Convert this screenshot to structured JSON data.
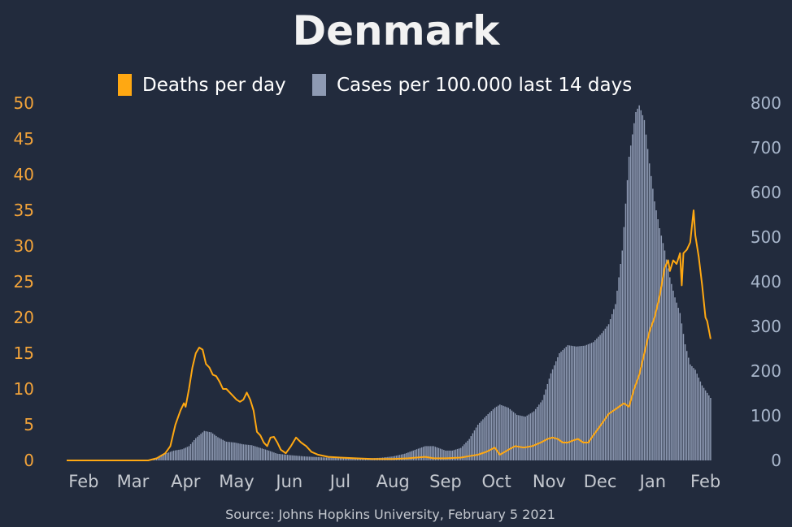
{
  "chart_data": {
    "type": "bar+line",
    "title": "Denmark",
    "source": "Source: Johns Hopkins University, February 5 2021",
    "legend_position": "top-center",
    "colors": {
      "background": "#222b3d",
      "deaths": "#ffa812",
      "cases": "#8e9ab3",
      "left_axis": "#f2a33a",
      "right_axis": "#a9b7cc"
    },
    "x_axis": {
      "start": "2020-01-22",
      "end": "2021-02-05",
      "tick_labels": [
        "Feb",
        "Mar",
        "Apr",
        "May",
        "Jun",
        "Jul",
        "Aug",
        "Sep",
        "Oct",
        "Nov",
        "Dec",
        "Jan",
        "Feb"
      ],
      "tick_dates": [
        "2020-02-01",
        "2020-03-01",
        "2020-04-01",
        "2020-05-01",
        "2020-06-01",
        "2020-07-01",
        "2020-08-01",
        "2020-09-01",
        "2020-10-01",
        "2020-11-01",
        "2020-12-01",
        "2021-01-01",
        "2021-02-01"
      ]
    },
    "y_left": {
      "range": [
        0,
        50
      ],
      "ticks": [
        0,
        5,
        10,
        15,
        20,
        25,
        30,
        35,
        40,
        45,
        50
      ]
    },
    "y_right": {
      "range": [
        0,
        800
      ],
      "ticks": [
        0,
        100,
        200,
        300,
        400,
        500,
        600,
        700,
        800
      ]
    },
    "series": [
      {
        "name": "Deaths per day",
        "axis": "left",
        "kind": "line",
        "points": [
          [
            "2020-01-22",
            0
          ],
          [
            "2020-03-10",
            0
          ],
          [
            "2020-03-15",
            0.3
          ],
          [
            "2020-03-20",
            1
          ],
          [
            "2020-03-23",
            2
          ],
          [
            "2020-03-26",
            5
          ],
          [
            "2020-03-29",
            7
          ],
          [
            "2020-03-31",
            8
          ],
          [
            "2020-04-01",
            7.5
          ],
          [
            "2020-04-03",
            10
          ],
          [
            "2020-04-05",
            13
          ],
          [
            "2020-04-07",
            15
          ],
          [
            "2020-04-09",
            15.8
          ],
          [
            "2020-04-11",
            15.5
          ],
          [
            "2020-04-13",
            13.5
          ],
          [
            "2020-04-15",
            13
          ],
          [
            "2020-04-17",
            12
          ],
          [
            "2020-04-19",
            11.8
          ],
          [
            "2020-04-21",
            11
          ],
          [
            "2020-04-23",
            10
          ],
          [
            "2020-04-25",
            10
          ],
          [
            "2020-04-27",
            9.5
          ],
          [
            "2020-04-29",
            9
          ],
          [
            "2020-05-01",
            8.5
          ],
          [
            "2020-05-03",
            8.2
          ],
          [
            "2020-05-05",
            8.5
          ],
          [
            "2020-05-07",
            9.5
          ],
          [
            "2020-05-09",
            8.5
          ],
          [
            "2020-05-11",
            7
          ],
          [
            "2020-05-13",
            4
          ],
          [
            "2020-05-15",
            3.5
          ],
          [
            "2020-05-17",
            2.5
          ],
          [
            "2020-05-19",
            2
          ],
          [
            "2020-05-21",
            3.2
          ],
          [
            "2020-05-23",
            3.3
          ],
          [
            "2020-05-25",
            2.5
          ],
          [
            "2020-05-27",
            1.5
          ],
          [
            "2020-05-30",
            1
          ],
          [
            "2020-06-02",
            2
          ],
          [
            "2020-06-05",
            3.2
          ],
          [
            "2020-06-08",
            2.5
          ],
          [
            "2020-06-11",
            2
          ],
          [
            "2020-06-14",
            1.2
          ],
          [
            "2020-06-18",
            0.8
          ],
          [
            "2020-06-24",
            0.5
          ],
          [
            "2020-07-01",
            0.4
          ],
          [
            "2020-07-10",
            0.3
          ],
          [
            "2020-07-20",
            0.2
          ],
          [
            "2020-08-01",
            0.2
          ],
          [
            "2020-08-10",
            0.3
          ],
          [
            "2020-08-20",
            0.5
          ],
          [
            "2020-08-25",
            0.3
          ],
          [
            "2020-09-01",
            0.3
          ],
          [
            "2020-09-10",
            0.4
          ],
          [
            "2020-09-15",
            0.6
          ],
          [
            "2020-09-20",
            0.8
          ],
          [
            "2020-09-25",
            1.2
          ],
          [
            "2020-09-30",
            1.8
          ],
          [
            "2020-10-03",
            0.8
          ],
          [
            "2020-10-08",
            1.5
          ],
          [
            "2020-10-12",
            2
          ],
          [
            "2020-10-17",
            1.8
          ],
          [
            "2020-10-22",
            2
          ],
          [
            "2020-10-27",
            2.5
          ],
          [
            "2020-10-31",
            3
          ],
          [
            "2020-11-03",
            3.2
          ],
          [
            "2020-11-06",
            3
          ],
          [
            "2020-11-09",
            2.5
          ],
          [
            "2020-11-12",
            2.5
          ],
          [
            "2020-11-15",
            2.8
          ],
          [
            "2020-11-18",
            3
          ],
          [
            "2020-11-21",
            2.5
          ],
          [
            "2020-11-24",
            2.5
          ],
          [
            "2020-11-27",
            3.5
          ],
          [
            "2020-11-30",
            4.5
          ],
          [
            "2020-12-03",
            5.5
          ],
          [
            "2020-12-06",
            6.5
          ],
          [
            "2020-12-09",
            7
          ],
          [
            "2020-12-12",
            7.5
          ],
          [
            "2020-12-15",
            8
          ],
          [
            "2020-12-18",
            7.5
          ],
          [
            "2020-12-21",
            10
          ],
          [
            "2020-12-24",
            12
          ],
          [
            "2020-12-27",
            15
          ],
          [
            "2020-12-30",
            18
          ],
          [
            "2021-01-02",
            20
          ],
          [
            "2021-01-05",
            23
          ],
          [
            "2021-01-08",
            27
          ],
          [
            "2021-01-10",
            28
          ],
          [
            "2021-01-11",
            26.5
          ],
          [
            "2021-01-13",
            28
          ],
          [
            "2021-01-15",
            27.5
          ],
          [
            "2021-01-17",
            29
          ],
          [
            "2021-01-18",
            24.5
          ],
          [
            "2021-01-19",
            29
          ],
          [
            "2021-01-21",
            29.5
          ],
          [
            "2021-01-23",
            30.5
          ],
          [
            "2021-01-25",
            35
          ],
          [
            "2021-01-26",
            31.5
          ],
          [
            "2021-01-28",
            28.5
          ],
          [
            "2021-01-30",
            24.5
          ],
          [
            "2021-02-01",
            20
          ],
          [
            "2021-02-02",
            19.5
          ],
          [
            "2021-02-04",
            17
          ]
        ]
      },
      {
        "name": "Cases per 100.000 last 14 days",
        "axis": "right",
        "kind": "bar",
        "points": [
          [
            "2020-01-22",
            0
          ],
          [
            "2020-03-10",
            0
          ],
          [
            "2020-03-15",
            5
          ],
          [
            "2020-03-20",
            15
          ],
          [
            "2020-03-25",
            22
          ],
          [
            "2020-03-30",
            25
          ],
          [
            "2020-04-03",
            32
          ],
          [
            "2020-04-07",
            50
          ],
          [
            "2020-04-12",
            66
          ],
          [
            "2020-04-16",
            63
          ],
          [
            "2020-04-20",
            52
          ],
          [
            "2020-04-25",
            42
          ],
          [
            "2020-04-30",
            40
          ],
          [
            "2020-05-05",
            36
          ],
          [
            "2020-05-10",
            34
          ],
          [
            "2020-05-15",
            28
          ],
          [
            "2020-05-20",
            22
          ],
          [
            "2020-05-25",
            15
          ],
          [
            "2020-06-01",
            12
          ],
          [
            "2020-06-10",
            9
          ],
          [
            "2020-06-20",
            7
          ],
          [
            "2020-07-01",
            5
          ],
          [
            "2020-07-10",
            4
          ],
          [
            "2020-07-20",
            5
          ],
          [
            "2020-07-25",
            6
          ],
          [
            "2020-08-01",
            9
          ],
          [
            "2020-08-08",
            15
          ],
          [
            "2020-08-15",
            25
          ],
          [
            "2020-08-20",
            32
          ],
          [
            "2020-08-25",
            32
          ],
          [
            "2020-09-01",
            22
          ],
          [
            "2020-09-05",
            22
          ],
          [
            "2020-09-10",
            28
          ],
          [
            "2020-09-15",
            48
          ],
          [
            "2020-09-20",
            80
          ],
          [
            "2020-09-25",
            100
          ],
          [
            "2020-09-30",
            118
          ],
          [
            "2020-10-03",
            125
          ],
          [
            "2020-10-08",
            118
          ],
          [
            "2020-10-13",
            102
          ],
          [
            "2020-10-18",
            98
          ],
          [
            "2020-10-23",
            110
          ],
          [
            "2020-10-28",
            135
          ],
          [
            "2020-11-02",
            195
          ],
          [
            "2020-11-07",
            240
          ],
          [
            "2020-11-12",
            258
          ],
          [
            "2020-11-17",
            255
          ],
          [
            "2020-11-22",
            257
          ],
          [
            "2020-11-27",
            265
          ],
          [
            "2020-12-02",
            285
          ],
          [
            "2020-12-06",
            305
          ],
          [
            "2020-12-10",
            350
          ],
          [
            "2020-12-14",
            470
          ],
          [
            "2020-12-18",
            680
          ],
          [
            "2020-12-22",
            780
          ],
          [
            "2020-12-24",
            795
          ],
          [
            "2020-12-27",
            762
          ],
          [
            "2020-12-30",
            665
          ],
          [
            "2021-01-02",
            580
          ],
          [
            "2021-01-05",
            520
          ],
          [
            "2021-01-08",
            470
          ],
          [
            "2021-01-11",
            410
          ],
          [
            "2021-01-14",
            365
          ],
          [
            "2021-01-17",
            330
          ],
          [
            "2021-01-20",
            260
          ],
          [
            "2021-01-23",
            215
          ],
          [
            "2021-01-26",
            203
          ],
          [
            "2021-01-30",
            168
          ],
          [
            "2021-02-04",
            140
          ]
        ]
      }
    ]
  }
}
